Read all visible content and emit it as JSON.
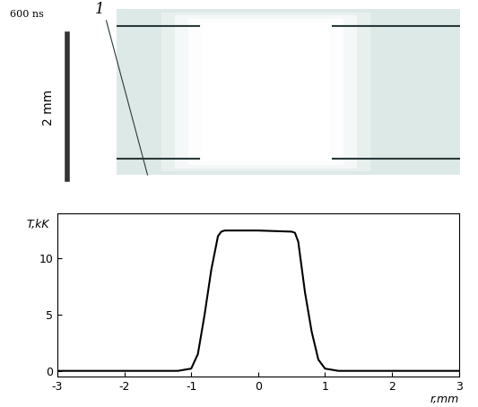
{
  "image": {
    "time_label": "600 ns",
    "marker_label": "1",
    "scale_label": "2 mm"
  },
  "chart_data": {
    "type": "line",
    "x": [
      -3,
      -1.2,
      -1.0,
      -0.9,
      -0.8,
      -0.7,
      -0.6,
      -0.55,
      -0.5,
      0,
      0.5,
      0.55,
      0.6,
      0.7,
      0.8,
      0.9,
      1.0,
      1.2,
      3
    ],
    "values": [
      0,
      0,
      0.2,
      1.5,
      5,
      9,
      12,
      12.4,
      12.5,
      12.5,
      12.4,
      12.3,
      11.5,
      7,
      3.5,
      1,
      0.2,
      0,
      0
    ],
    "color": "#000000",
    "x_label": "r,mm",
    "y_label": "T,kK",
    "xlim": [
      -3,
      3
    ],
    "xticks": [
      -3,
      -2,
      -1,
      0,
      1,
      2,
      3
    ],
    "ylim": [
      -0.5,
      14
    ],
    "yticks": [
      0,
      5,
      10
    ],
    "grid": false
  }
}
